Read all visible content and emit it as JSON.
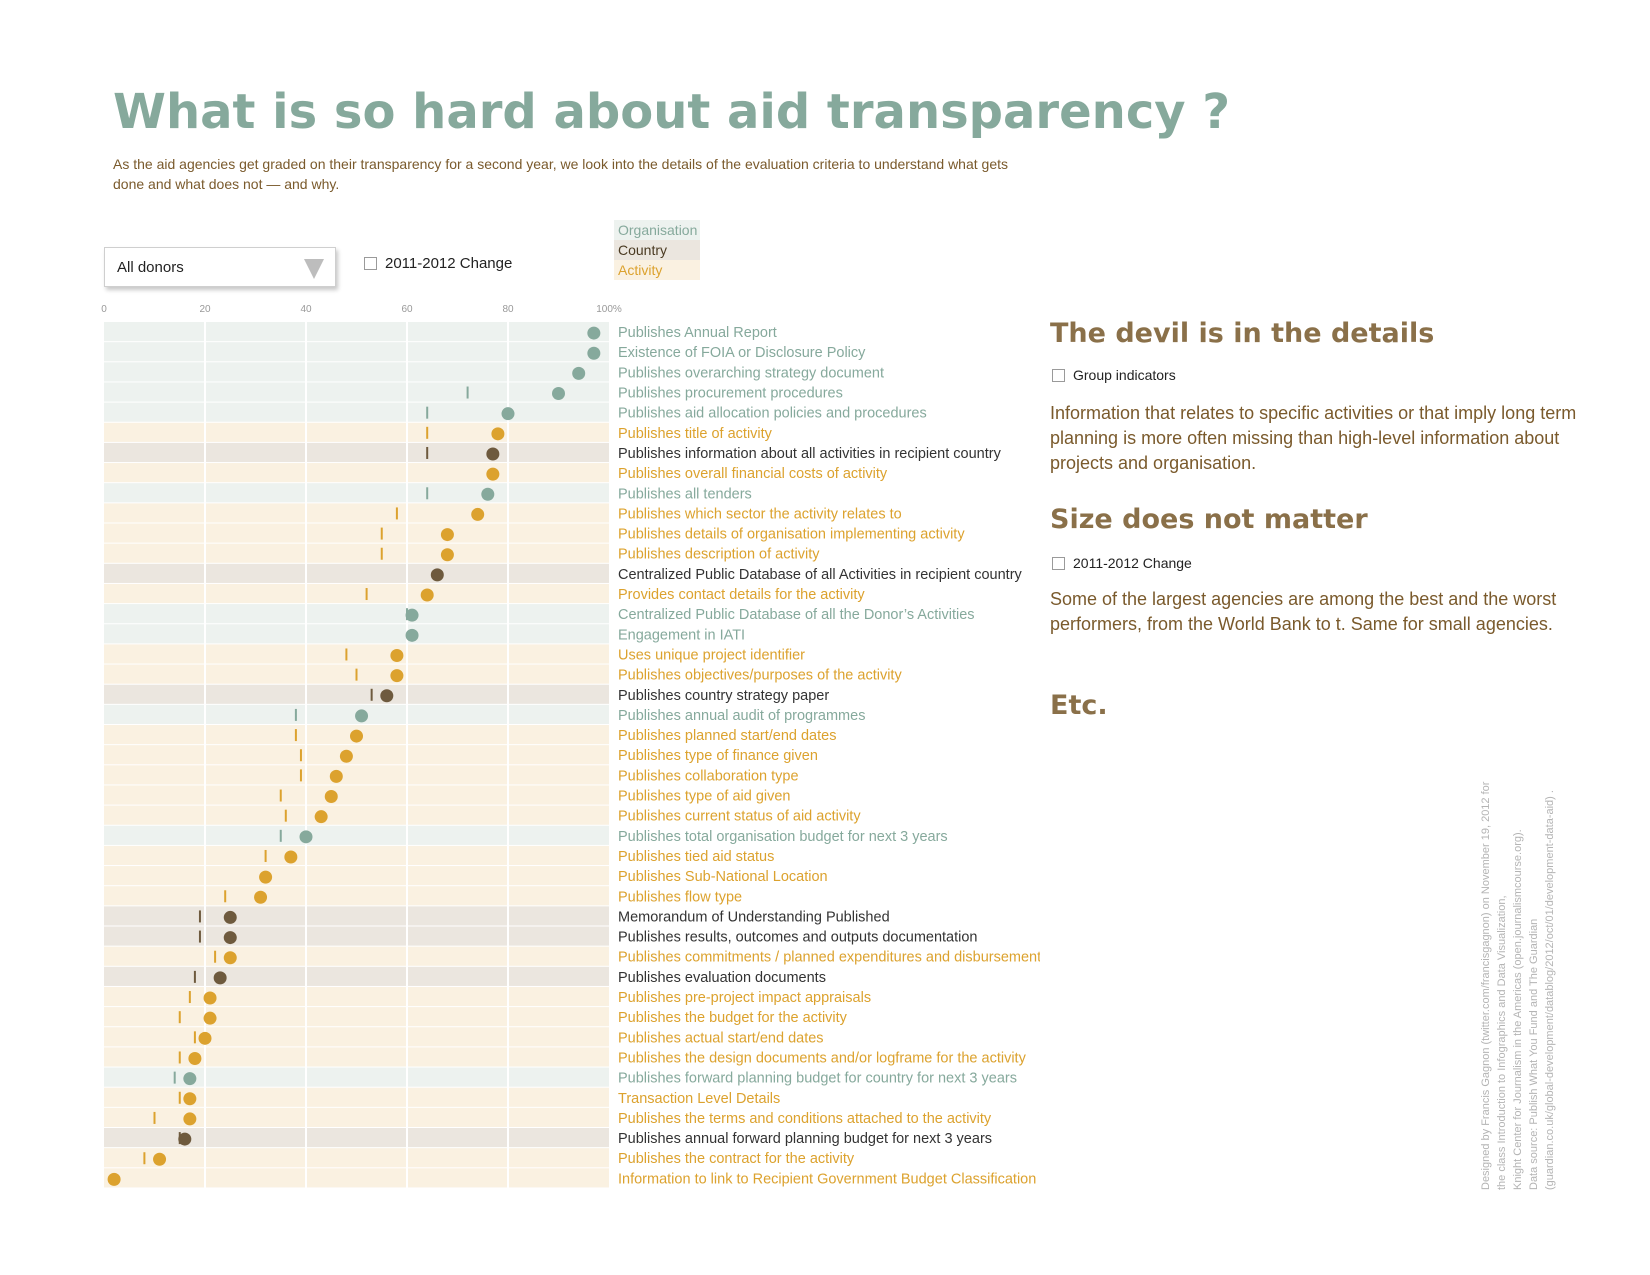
{
  "header": {
    "title": "What is so hard about aid transparency ?",
    "subtitle": "As the aid agencies get graded on their transparency for a second year, we look into the details of the evaluation criteria to understand what gets done and what does not — and why."
  },
  "controls": {
    "donor_select": "All donors",
    "change_checkbox_label": "2011-2012 Change"
  },
  "legend": [
    {
      "label": "Organisation",
      "key": "org"
    },
    {
      "label": "Country",
      "key": "country"
    },
    {
      "label": "Activity",
      "key": "activity"
    }
  ],
  "colors": {
    "org": "#86a99c",
    "org_bg": "#edf2ef",
    "country": "#6e5a3e",
    "country_text": "#333333",
    "country_bg": "#ebe6df",
    "activity": "#dca22e",
    "activity_bg": "#faf1e1",
    "grid": "#ffffff",
    "axis_text": "#999999"
  },
  "chart_data": {
    "type": "scatter",
    "xlim": [
      0,
      100
    ],
    "xticks": [
      "0",
      "20",
      "40",
      "60",
      "80",
      "100%"
    ],
    "indicators": [
      {
        "label": "Publishes Annual Report",
        "cat": "org",
        "v2012": 97,
        "v2011": null
      },
      {
        "label": "Existence of FOIA or Disclosure Policy",
        "cat": "org",
        "v2012": 97,
        "v2011": null
      },
      {
        "label": "Publishes overarching strategy document",
        "cat": "org",
        "v2012": 94,
        "v2011": null
      },
      {
        "label": "Publishes procurement procedures",
        "cat": "org",
        "v2012": 90,
        "v2011": 72
      },
      {
        "label": "Publishes aid allocation policies and procedures",
        "cat": "org",
        "v2012": 80,
        "v2011": 64
      },
      {
        "label": "Publishes title of activity",
        "cat": "activity",
        "v2012": 78,
        "v2011": 64
      },
      {
        "label": "Publishes information about all activities in recipient country",
        "cat": "country",
        "v2012": 77,
        "v2011": 64
      },
      {
        "label": "Publishes overall financial costs of activity",
        "cat": "activity",
        "v2012": 77,
        "v2011": null
      },
      {
        "label": "Publishes all tenders",
        "cat": "org",
        "v2012": 76,
        "v2011": 64
      },
      {
        "label": "Publishes which sector the activity relates to",
        "cat": "activity",
        "v2012": 74,
        "v2011": 58
      },
      {
        "label": "Publishes details of organisation implementing activity",
        "cat": "activity",
        "v2012": 68,
        "v2011": 55
      },
      {
        "label": "Publishes description of activity",
        "cat": "activity",
        "v2012": 68,
        "v2011": 55
      },
      {
        "label": "Centralized Public Database of all Activities in recipient country",
        "cat": "country",
        "v2012": 66,
        "v2011": null
      },
      {
        "label": "Provides contact details for the activity",
        "cat": "activity",
        "v2012": 64,
        "v2011": 52
      },
      {
        "label": "Centralized Public Database of all the Donor’s Activities",
        "cat": "org",
        "v2012": 61,
        "v2011": 60
      },
      {
        "label": "Engagement in IATI",
        "cat": "org",
        "v2012": 61,
        "v2011": null
      },
      {
        "label": "Uses unique project identifier",
        "cat": "activity",
        "v2012": 58,
        "v2011": 48
      },
      {
        "label": "Publishes objectives/purposes of the activity",
        "cat": "activity",
        "v2012": 58,
        "v2011": 50
      },
      {
        "label": "Publishes country strategy paper",
        "cat": "country",
        "v2012": 56,
        "v2011": 53
      },
      {
        "label": "Publishes annual audit of programmes",
        "cat": "org",
        "v2012": 51,
        "v2011": 38
      },
      {
        "label": "Publishes planned start/end dates",
        "cat": "activity",
        "v2012": 50,
        "v2011": 38
      },
      {
        "label": "Publishes type of finance given",
        "cat": "activity",
        "v2012": 48,
        "v2011": 39
      },
      {
        "label": "Publishes collaboration type",
        "cat": "activity",
        "v2012": 46,
        "v2011": 39
      },
      {
        "label": "Publishes type of aid given",
        "cat": "activity",
        "v2012": 45,
        "v2011": 35
      },
      {
        "label": "Publishes current status of aid activity",
        "cat": "activity",
        "v2012": 43,
        "v2011": 36
      },
      {
        "label": "Publishes total organisation budget for next 3 years",
        "cat": "org",
        "v2012": 40,
        "v2011": 35
      },
      {
        "label": "Publishes tied aid status",
        "cat": "activity",
        "v2012": 37,
        "v2011": 32
      },
      {
        "label": "Publishes Sub-National Location",
        "cat": "activity",
        "v2012": 32,
        "v2011": null
      },
      {
        "label": "Publishes flow type",
        "cat": "activity",
        "v2012": 31,
        "v2011": 24
      },
      {
        "label": "Memorandum of Understanding Published",
        "cat": "country",
        "v2012": 25,
        "v2011": 19
      },
      {
        "label": "Publishes results, outcomes and outputs documentation",
        "cat": "country",
        "v2012": 25,
        "v2011": 19
      },
      {
        "label": "Publishes commitments / planned expenditures and disbursements",
        "cat": "activity",
        "v2012": 25,
        "v2011": 22
      },
      {
        "label": "Publishes evaluation documents",
        "cat": "country",
        "v2012": 23,
        "v2011": 18
      },
      {
        "label": "Publishes pre-project impact appraisals",
        "cat": "activity",
        "v2012": 21,
        "v2011": 17
      },
      {
        "label": "Publishes the budget for the activity",
        "cat": "activity",
        "v2012": 21,
        "v2011": 15
      },
      {
        "label": "Publishes actual start/end dates",
        "cat": "activity",
        "v2012": 20,
        "v2011": 18
      },
      {
        "label": "Publishes the design documents and/or logframe for the activity",
        "cat": "activity",
        "v2012": 18,
        "v2011": 15
      },
      {
        "label": "Publishes forward planning budget for country for next 3 years",
        "cat": "org",
        "v2012": 17,
        "v2011": 14
      },
      {
        "label": "Transaction Level Details",
        "cat": "activity",
        "v2012": 17,
        "v2011": 15
      },
      {
        "label": "Publishes the terms and conditions attached to the activity",
        "cat": "activity",
        "v2012": 17,
        "v2011": 10
      },
      {
        "label": "Publishes annual forward planning budget for next 3 years",
        "cat": "country",
        "v2012": 16,
        "v2011": 15
      },
      {
        "label": "Publishes the contract for the activity",
        "cat": "activity",
        "v2012": 11,
        "v2011": 8
      },
      {
        "label": "Information to link to Recipient Government Budget Classification",
        "cat": "activity",
        "v2012": 2,
        "v2011": null
      }
    ]
  },
  "sidebar": {
    "devil_title": "The devil is in the details",
    "group_checkbox_label": "Group indicators",
    "devil_text": "Information that relates to specific activities or that imply long term planning is more often missing than high-level information about projects and organisation.",
    "size_title": "Size does not matter",
    "size_checkbox_label": "2011-2012 Change",
    "size_text": "Some of the largest agencies are among the best and the worst performers, from the World Bank to t. Same for small agencies.",
    "etc_title": "Etc."
  },
  "credits": {
    "line1": "Designed by Francis Gagnon (twitter.com/francisgagnon) on November 19, 2012 for",
    "line2": "the class Introduction to Infographics and Data Visualization,",
    "line3": "Knight Center for Journalism in the Americas (open.journalismcourse.org).",
    "line4": "Data source: Publish What You Fund and The Guardian",
    "line5": "(guardian.co.uk/global-development/datablog/2012/oct/01/development-data-aid) ."
  }
}
